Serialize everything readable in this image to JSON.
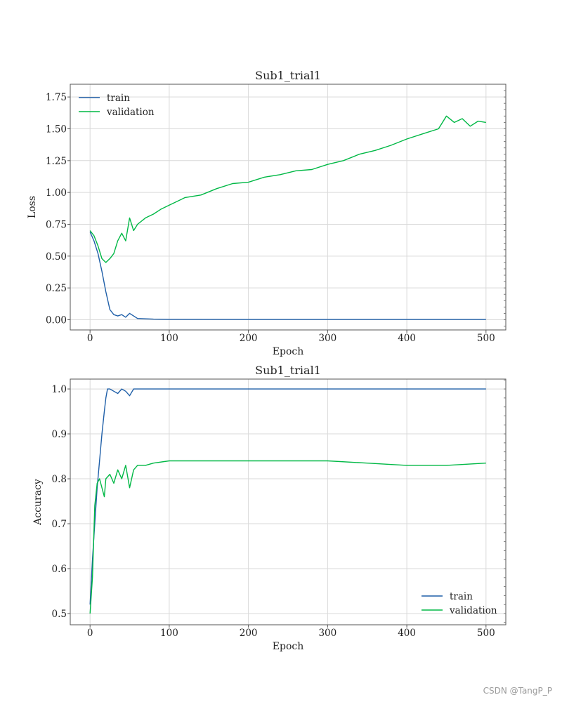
{
  "watermark": "CSDN @TangP_P",
  "colors": {
    "train": "#1f5fa8",
    "validation": "#00b845"
  },
  "chart_data": [
    {
      "type": "line",
      "title": "Sub1_trial1",
      "xlabel": "Epoch",
      "ylabel": "Loss",
      "xlim": [
        -25,
        525
      ],
      "ylim": [
        -0.08,
        1.85
      ],
      "xticks": [
        0,
        100,
        200,
        300,
        400,
        500
      ],
      "yticks": [
        0.0,
        0.25,
        0.5,
        0.75,
        1.0,
        1.25,
        1.5,
        1.75
      ],
      "ytick_labels": [
        "0.00",
        "0.25",
        "0.50",
        "0.75",
        "1.00",
        "1.25",
        "1.50",
        "1.75"
      ],
      "legend_position": "upper-left",
      "grid": true,
      "series": [
        {
          "name": "train",
          "x": [
            0,
            5,
            10,
            15,
            20,
            25,
            30,
            35,
            40,
            45,
            50,
            55,
            60,
            80,
            100,
            200,
            300,
            400,
            500
          ],
          "y": [
            0.69,
            0.62,
            0.52,
            0.38,
            0.22,
            0.08,
            0.04,
            0.03,
            0.04,
            0.02,
            0.05,
            0.03,
            0.01,
            0.005,
            0.003,
            0.002,
            0.002,
            0.002,
            0.002
          ]
        },
        {
          "name": "validation",
          "x": [
            0,
            5,
            10,
            15,
            20,
            25,
            30,
            35,
            40,
            45,
            50,
            55,
            60,
            70,
            80,
            90,
            100,
            120,
            140,
            160,
            180,
            200,
            220,
            240,
            260,
            280,
            300,
            320,
            340,
            360,
            380,
            400,
            420,
            440,
            450,
            460,
            470,
            480,
            490,
            500
          ],
          "y": [
            0.7,
            0.66,
            0.58,
            0.48,
            0.45,
            0.48,
            0.52,
            0.62,
            0.68,
            0.62,
            0.8,
            0.7,
            0.75,
            0.8,
            0.83,
            0.87,
            0.9,
            0.96,
            0.98,
            1.03,
            1.07,
            1.08,
            1.12,
            1.14,
            1.17,
            1.18,
            1.22,
            1.25,
            1.3,
            1.33,
            1.37,
            1.42,
            1.46,
            1.5,
            1.6,
            1.55,
            1.58,
            1.52,
            1.56,
            1.55
          ]
        }
      ]
    },
    {
      "type": "line",
      "title": "Sub1_trial1",
      "xlabel": "Epoch",
      "ylabel": "Accuracy",
      "xlim": [
        -25,
        525
      ],
      "ylim": [
        0.475,
        1.022
      ],
      "xticks": [
        0,
        100,
        200,
        300,
        400,
        500
      ],
      "yticks": [
        0.5,
        0.6,
        0.7,
        0.8,
        0.9,
        1.0
      ],
      "ytick_labels": [
        "0.5",
        "0.6",
        "0.7",
        "0.8",
        "0.9",
        "1.0"
      ],
      "legend_position": "lower-right",
      "grid": true,
      "series": [
        {
          "name": "train",
          "x": [
            0,
            3,
            6,
            9,
            12,
            15,
            18,
            20,
            22,
            25,
            30,
            35,
            40,
            45,
            50,
            55,
            60,
            80,
            100,
            200,
            300,
            400,
            500
          ],
          "y": [
            0.52,
            0.62,
            0.7,
            0.78,
            0.84,
            0.9,
            0.95,
            0.98,
            1.0,
            1.0,
            0.995,
            0.99,
            1.0,
            0.995,
            0.985,
            1.0,
            1.0,
            1.0,
            1.0,
            1.0,
            1.0,
            1.0,
            1.0
          ]
        },
        {
          "name": "validation",
          "x": [
            0,
            3,
            6,
            9,
            12,
            15,
            18,
            20,
            25,
            30,
            35,
            40,
            45,
            50,
            55,
            60,
            70,
            80,
            100,
            150,
            200,
            250,
            300,
            350,
            400,
            450,
            500
          ],
          "y": [
            0.5,
            0.58,
            0.74,
            0.79,
            0.8,
            0.78,
            0.76,
            0.8,
            0.81,
            0.79,
            0.82,
            0.8,
            0.83,
            0.78,
            0.82,
            0.83,
            0.83,
            0.835,
            0.84,
            0.84,
            0.84,
            0.84,
            0.84,
            0.835,
            0.83,
            0.83,
            0.835
          ]
        }
      ]
    }
  ]
}
